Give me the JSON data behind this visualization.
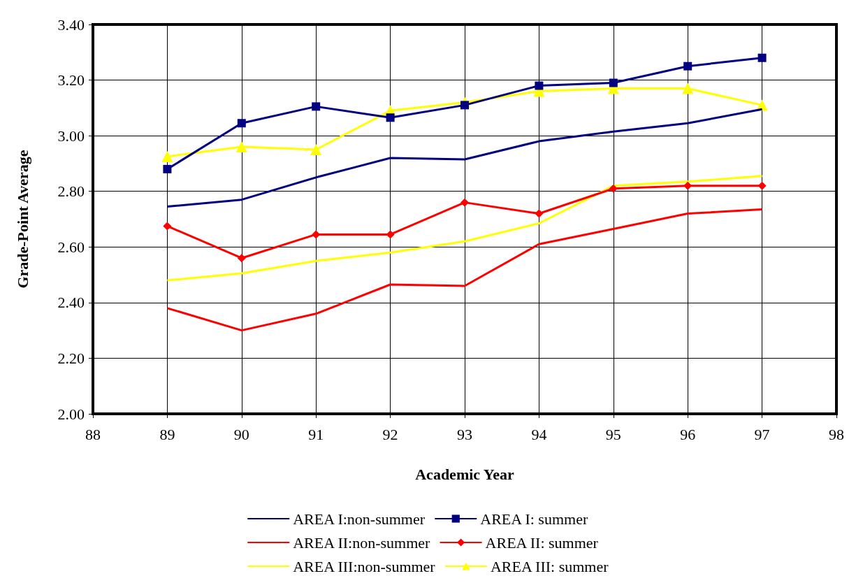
{
  "chart_data": {
    "type": "line",
    "xlabel": "Academic Year",
    "ylabel": "Grade-Point Average",
    "x": [
      89,
      90,
      91,
      92,
      93,
      94,
      95,
      96,
      97
    ],
    "xlim": [
      88,
      98
    ],
    "xticks": [
      88,
      89,
      90,
      91,
      92,
      93,
      94,
      95,
      96,
      97,
      98
    ],
    "ylim": [
      2.0,
      3.4
    ],
    "yticks": [
      {
        "value": 2.0,
        "label": "2.00"
      },
      {
        "value": 2.2,
        "label": "2.20"
      },
      {
        "value": 2.4,
        "label": "2.40"
      },
      {
        "value": 2.6,
        "label": "2.60"
      },
      {
        "value": 2.8,
        "label": "2.80"
      },
      {
        "value": 3.0,
        "label": "3.00"
      },
      {
        "value": 3.2,
        "label": "3.20"
      },
      {
        "value": 3.4,
        "label": "3.40"
      }
    ],
    "grid": true,
    "legend": "bottom",
    "series": [
      {
        "name": "AREA I:non-summer",
        "color": "#000080",
        "marker": "none",
        "values": [
          2.745,
          2.77,
          2.85,
          2.92,
          2.915,
          2.98,
          3.015,
          3.045,
          3.095
        ]
      },
      {
        "name": "AREA I: summer",
        "color": "#000080",
        "marker": "square",
        "values": [
          2.88,
          3.045,
          3.105,
          3.065,
          3.11,
          3.18,
          3.19,
          3.25,
          3.28
        ]
      },
      {
        "name": "AREA II:non-summer",
        "color": "#ff0000",
        "marker": "none",
        "values": [
          2.38,
          2.3,
          2.36,
          2.465,
          2.46,
          2.61,
          2.665,
          2.72,
          2.735
        ]
      },
      {
        "name": "AREA II: summer",
        "color": "#ff0000",
        "marker": "diamond",
        "values": [
          2.675,
          2.56,
          2.645,
          2.645,
          2.76,
          2.72,
          2.81,
          2.82,
          2.82
        ]
      },
      {
        "name": "AREA III:non-summer",
        "color": "#ffff00",
        "marker": "none",
        "values": [
          2.48,
          2.505,
          2.55,
          2.58,
          2.62,
          2.685,
          2.82,
          2.835,
          2.855
        ]
      },
      {
        "name": "AREA III: summer",
        "color": "#ffff00",
        "marker": "triangle",
        "values": [
          2.925,
          2.96,
          2.95,
          3.09,
          3.12,
          3.16,
          3.17,
          3.17,
          3.11
        ]
      }
    ]
  }
}
